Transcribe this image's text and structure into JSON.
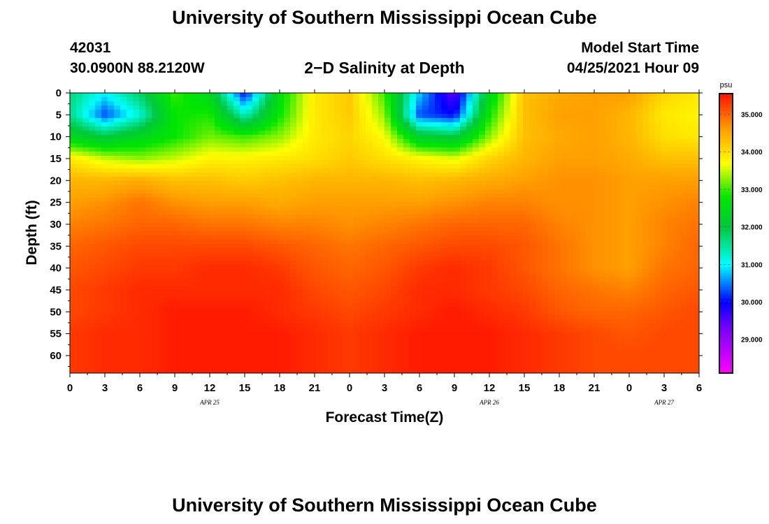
{
  "header": {
    "title_top": "University of Southern Mississippi Ocean Cube",
    "title_bottom": "University of Southern Mississippi Ocean Cube",
    "station_id": "42031",
    "station_coords": "30.0900N  88.2120W",
    "subtitle": "2−D Salinity at Depth",
    "model_start_label": "Model Start Time",
    "model_start_value": "04/25/2021 Hour 09"
  },
  "chart_data": {
    "type": "heatmap",
    "title": "2−D Salinity at Depth",
    "xlabel": "Forecast Time(Z)",
    "ylabel": "Depth (ft)",
    "x_tick_labels": [
      "0",
      "3",
      "6",
      "9",
      "12",
      "15",
      "18",
      "21",
      "0",
      "3",
      "6",
      "9",
      "12",
      "15",
      "18",
      "21",
      "0",
      "3",
      "6"
    ],
    "date_labels": [
      {
        "text": "APR  25",
        "tick_index": 4
      },
      {
        "text": "APR  26",
        "tick_index": 12
      },
      {
        "text": "APR  27",
        "tick_index": 17
      }
    ],
    "y_tick_labels": [
      "0",
      "5",
      "10",
      "15",
      "20",
      "25",
      "30",
      "35",
      "40",
      "45",
      "50",
      "55",
      "60"
    ],
    "ylim": [
      64,
      0
    ],
    "x_range_hours": [
      0,
      54
    ],
    "colorbar": {
      "unit": "psu",
      "min": 28.1,
      "max": 35.55,
      "tick_labels": [
        "35.000",
        "34.000",
        "33.000",
        "32.000",
        "31.000",
        "30.000",
        "29.000"
      ],
      "tick_values": [
        35,
        34,
        33,
        32,
        31,
        30,
        29
      ]
    },
    "depths_ft": [
      0,
      5,
      10,
      15,
      20,
      25,
      30,
      35,
      40,
      45,
      50,
      55,
      60,
      64
    ],
    "times_hr": [
      0,
      3,
      6,
      9,
      12,
      15,
      18,
      21,
      24,
      27,
      30,
      33,
      36,
      39,
      42,
      45,
      48,
      51,
      54
    ],
    "salinity_psu": [
      [
        31.7,
        31.0,
        31.8,
        33.0,
        32.4,
        30.0,
        32.6,
        33.9,
        34.2,
        33.0,
        30.8,
        29.4,
        32.4,
        34.3,
        34.5,
        34.6,
        34.6,
        34.1,
        33.9
      ],
      [
        31.6,
        30.3,
        31.2,
        32.8,
        32.9,
        31.3,
        32.8,
        33.9,
        34.2,
        33.3,
        30.3,
        30.0,
        32.8,
        34.3,
        34.6,
        34.6,
        34.4,
        33.9,
        33.8
      ],
      [
        32.4,
        32.0,
        32.4,
        32.8,
        33.2,
        33.0,
        33.3,
        33.9,
        34.1,
        33.7,
        32.2,
        32.0,
        33.3,
        34.3,
        34.5,
        34.6,
        34.4,
        34.0,
        33.9
      ],
      [
        33.9,
        33.5,
        33.3,
        33.5,
        33.8,
        33.8,
        33.9,
        34.0,
        34.2,
        34.0,
        33.8,
        33.6,
        34.1,
        34.4,
        34.6,
        34.6,
        34.5,
        34.3,
        34.3
      ],
      [
        34.4,
        34.4,
        34.5,
        34.3,
        34.3,
        34.2,
        34.3,
        34.4,
        34.4,
        34.4,
        34.3,
        34.4,
        34.5,
        34.6,
        34.7,
        34.7,
        34.6,
        34.6,
        34.6
      ],
      [
        34.6,
        34.7,
        34.9,
        34.7,
        34.6,
        34.6,
        34.5,
        34.6,
        34.6,
        34.6,
        34.6,
        34.7,
        34.8,
        34.8,
        34.7,
        34.7,
        34.6,
        34.7,
        34.8
      ],
      [
        34.8,
        34.9,
        35.0,
        35.0,
        34.9,
        34.9,
        34.8,
        34.8,
        34.7,
        34.8,
        34.9,
        35.0,
        35.0,
        35.0,
        34.8,
        34.7,
        34.6,
        34.8,
        34.9
      ],
      [
        35.0,
        35.1,
        35.2,
        35.2,
        35.2,
        35.2,
        35.1,
        35.0,
        34.9,
        35.0,
        35.1,
        35.2,
        35.2,
        35.1,
        34.9,
        34.7,
        34.6,
        34.8,
        35.0
      ],
      [
        35.1,
        35.2,
        35.3,
        35.3,
        35.4,
        35.4,
        35.3,
        35.1,
        35.0,
        35.1,
        35.3,
        35.4,
        35.3,
        35.1,
        34.9,
        34.7,
        34.6,
        34.9,
        35.0
      ],
      [
        35.2,
        35.3,
        35.4,
        35.4,
        35.4,
        35.4,
        35.4,
        35.2,
        35.1,
        35.2,
        35.4,
        35.4,
        35.3,
        35.2,
        35.0,
        34.9,
        34.8,
        35.0,
        35.1
      ],
      [
        35.2,
        35.3,
        35.4,
        35.5,
        35.5,
        35.5,
        35.4,
        35.3,
        35.2,
        35.3,
        35.4,
        35.5,
        35.4,
        35.3,
        35.1,
        35.0,
        35.0,
        35.1,
        35.2
      ],
      [
        35.3,
        35.4,
        35.4,
        35.5,
        35.5,
        35.5,
        35.5,
        35.4,
        35.3,
        35.4,
        35.5,
        35.5,
        35.5,
        35.4,
        35.3,
        35.2,
        35.1,
        35.2,
        35.2
      ],
      [
        35.3,
        35.4,
        35.4,
        35.5,
        35.5,
        35.5,
        35.5,
        35.4,
        35.3,
        35.4,
        35.5,
        35.5,
        35.5,
        35.4,
        35.3,
        35.2,
        35.2,
        35.2,
        35.2
      ],
      [
        35.3,
        35.4,
        35.4,
        35.5,
        35.5,
        35.5,
        35.5,
        35.4,
        35.3,
        35.4,
        35.5,
        35.5,
        35.5,
        35.4,
        35.3,
        35.2,
        35.2,
        35.2,
        35.2
      ]
    ],
    "legend_placement": "right",
    "grid": false,
    "colors": {
      "high": "#ff1e00",
      "mid_high": "#ff9a00",
      "mid": "#ffff00",
      "mid_low": "#00dd00",
      "low_mid": "#00ffff",
      "low": "#0000ff",
      "lowest": "#ff00ff"
    }
  }
}
